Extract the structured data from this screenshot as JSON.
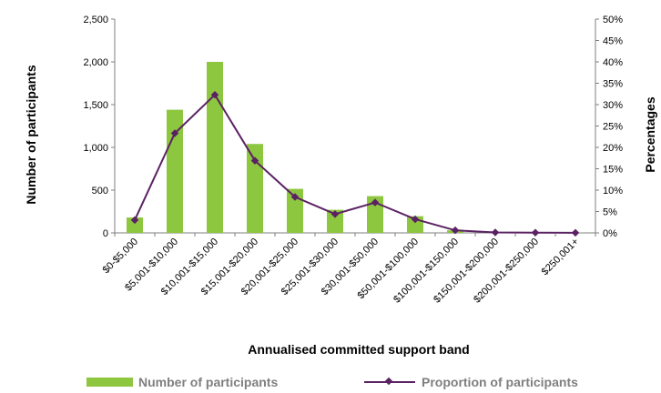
{
  "colors": {
    "bar": "#8dc63f",
    "line": "#5b2263",
    "axis": "#7f7f7f"
  },
  "chart_data": {
    "type": "bar",
    "categories": [
      "$0-$5,000",
      "$5,001-$10,000",
      "$10,001-$15,000",
      "$15,001-$20,000",
      "$20,001-$25,000",
      "$25,001-$30,000",
      "$30,001-$50,000",
      "$50,001-$100,000",
      "$100,001-$150,000",
      "$150,001-$200,000",
      "$200,001-$250,000",
      "$250,001+"
    ],
    "series": [
      {
        "name": "Number of participants",
        "type": "bar",
        "axis": "left",
        "values": [
          180,
          1440,
          2000,
          1040,
          515,
          270,
          430,
          195,
          30,
          5,
          3,
          2
        ]
      },
      {
        "name": "Proportion of participants",
        "type": "line",
        "axis": "right",
        "values": [
          3.0,
          23.3,
          32.3,
          16.9,
          8.4,
          4.4,
          7.1,
          3.2,
          0.6,
          0.1,
          0.05,
          0.03
        ]
      }
    ],
    "xlabel": "Annualised committed support band",
    "ylabel": "Number of participants",
    "y2label": "Percentages",
    "ylim": [
      0,
      2500
    ],
    "y2lim": [
      0,
      50
    ],
    "yticks": [
      "0",
      "500",
      "1,000",
      "1,500",
      "2,000",
      "2,500"
    ],
    "y2ticks": [
      "0%",
      "5%",
      "10%",
      "15%",
      "20%",
      "25%",
      "30%",
      "35%",
      "40%",
      "45%",
      "50%"
    ],
    "grid": false,
    "legend_position": "bottom"
  }
}
